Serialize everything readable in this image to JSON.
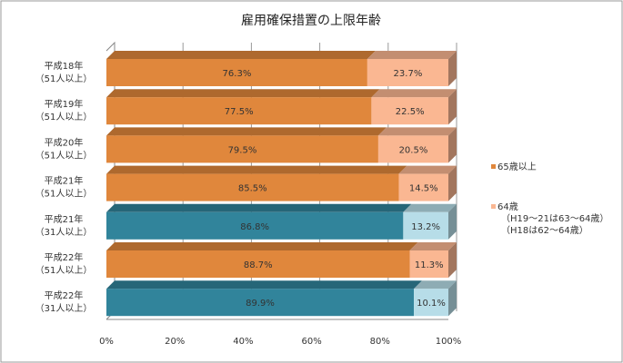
{
  "chart_data": {
    "type": "bar",
    "stacked": true,
    "orientation": "horizontal",
    "percent": true,
    "title": "雇用確保措置の上限年齢",
    "categories": [
      [
        "平成18年",
        "（51人以上）"
      ],
      [
        "平成19年",
        "（51人以上）"
      ],
      [
        "平成20年",
        "（51人以上）"
      ],
      [
        "平成21年",
        "（51人以上）"
      ],
      [
        "平成21年",
        "（31人以上）"
      ],
      [
        "平成22年",
        "（51人以上）"
      ],
      [
        "平成22年",
        "（31人以上）"
      ]
    ],
    "series": [
      {
        "name": "65歳以上",
        "values": [
          76.3,
          77.5,
          79.5,
          85.5,
          86.8,
          88.7,
          89.9
        ],
        "labels": [
          "76.3%",
          "77.5%",
          "79.5%",
          "85.5%",
          "86.8%",
          "88.7%",
          "89.9%"
        ]
      },
      {
        "name": "64歳",
        "name_lines": [
          "64歳",
          "（H19～21は63～64歳）",
          "（H18は62～64歳）"
        ],
        "values": [
          23.7,
          22.5,
          20.5,
          14.5,
          13.2,
          11.3,
          10.1
        ],
        "labels": [
          "23.7%",
          "22.5%",
          "20.5%",
          "14.5%",
          "13.2%",
          "11.3%",
          "10.1%"
        ]
      }
    ],
    "xlim": [
      0,
      100
    ],
    "xticks": [
      "0%",
      "20%",
      "40%",
      "60%",
      "80%",
      "100%"
    ],
    "grid": true,
    "legend": "right",
    "colors": {
      "s1": "#E0873C",
      "s1_alt": "#31849B",
      "s2": "#FAB792",
      "s2_alt": "#B7DDE8"
    },
    "alt_color_rows": [
      4,
      6
    ]
  }
}
